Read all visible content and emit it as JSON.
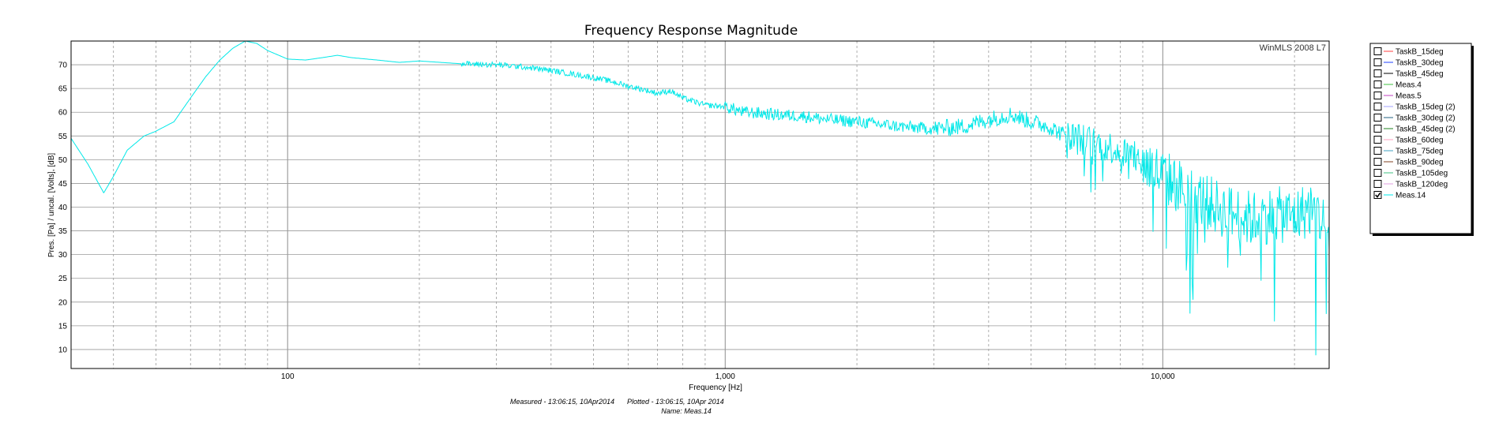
{
  "chart_data": {
    "type": "line",
    "title": "Frequency Response Magnitude",
    "xlabel": "Frequency [Hz]",
    "ylabel": "Pres. [Pa] / uncal. [Volts], [dB]",
    "xscale": "log",
    "xlim": [
      32,
      24000
    ],
    "ylim": [
      6,
      75
    ],
    "grid": true,
    "x_ticks": [
      {
        "value": 100,
        "label": "100"
      },
      {
        "value": 1000,
        "label": "1,000"
      },
      {
        "value": 10000,
        "label": "10,000"
      }
    ],
    "y_ticks": [
      10,
      15,
      20,
      25,
      30,
      35,
      40,
      45,
      50,
      55,
      60,
      65,
      70
    ],
    "watermark": "WinMLS 2008 L7",
    "legend_position": "right",
    "footer": {
      "measured": "Measured - 13:06:15, 10Apr2014",
      "plotted": "Plotted - 13:06:15, 10Apr 2014",
      "name": "Name: Meas.14"
    },
    "legend": [
      {
        "name": "TaskB_15deg",
        "color": "#ff4040",
        "checked": false
      },
      {
        "name": "TaskB_30deg",
        "color": "#2040ff",
        "checked": false
      },
      {
        "name": "TaskB_45deg",
        "color": "#000000",
        "checked": false
      },
      {
        "name": "Meas.4",
        "color": "#40c040",
        "checked": false
      },
      {
        "name": "Meas.5",
        "color": "#c040c0",
        "checked": false
      },
      {
        "name": "TaskB_15deg (2)",
        "color": "#a0a0ff",
        "checked": false
      },
      {
        "name": "TaskB_30deg (2)",
        "color": "#206080",
        "checked": false
      },
      {
        "name": "TaskB_45deg (2)",
        "color": "#208020",
        "checked": false
      },
      {
        "name": "TaskB_60deg",
        "color": "#ffa0c0",
        "checked": false
      },
      {
        "name": "TaskB_75deg",
        "color": "#40a0c0",
        "checked": false
      },
      {
        "name": "TaskB_90deg",
        "color": "#804020",
        "checked": false
      },
      {
        "name": "TaskB_105deg",
        "color": "#40c080",
        "checked": false
      },
      {
        "name": "TaskB_120deg",
        "color": "#e0a0e0",
        "checked": false
      },
      {
        "name": "Meas.14",
        "color": "#00e8e8",
        "checked": true
      }
    ],
    "series": [
      {
        "name": "Meas.14",
        "color": "#00e8e8",
        "x": [
          32,
          35,
          38,
          40,
          43,
          47,
          50,
          55,
          60,
          65,
          70,
          75,
          80,
          85,
          90,
          100,
          110,
          120,
          130,
          140,
          160,
          180,
          200,
          250,
          300,
          350,
          400,
          450,
          500,
          550,
          600,
          650,
          700,
          750,
          800,
          900,
          1000,
          1100,
          1200,
          1300,
          1500,
          1700,
          2000,
          2500,
          3000,
          3500,
          4000,
          4500,
          5000,
          5500,
          6000,
          7000,
          8000,
          9000,
          10000,
          12000,
          14000,
          16000,
          18000,
          20000,
          22000,
          24000
        ],
        "y": [
          54.5,
          49,
          43,
          46.5,
          52,
          55,
          56,
          58,
          63,
          67.5,
          71,
          73.5,
          75,
          74.5,
          73,
          71.2,
          71,
          71.5,
          72,
          71.5,
          71,
          70.5,
          70.8,
          70.2,
          70,
          69.5,
          68.8,
          68,
          67.3,
          66.5,
          65.5,
          64.8,
          64,
          64.5,
          63,
          61.5,
          61.2,
          60,
          59.8,
          59.5,
          59.2,
          58.5,
          58,
          57,
          56.5,
          57,
          58.5,
          59.5,
          58,
          57,
          55,
          53.5,
          52,
          49.5,
          46.5,
          42,
          39,
          37.5,
          38.5,
          38,
          40,
          35
        ]
      }
    ]
  }
}
